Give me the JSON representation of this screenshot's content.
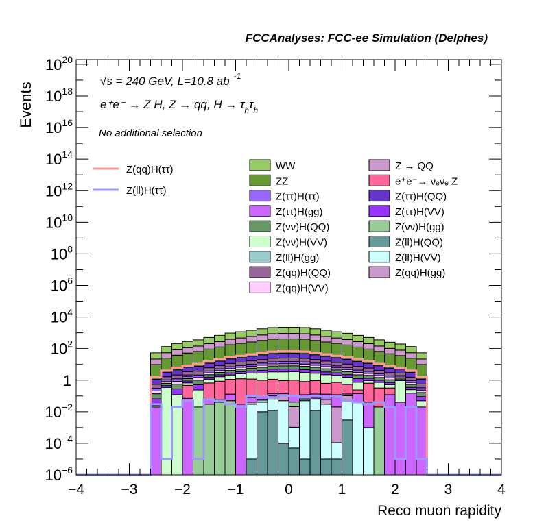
{
  "chart_data": {
    "type": "bar",
    "subtype": "stacked-histogram",
    "title": "FCCAnalyses: FCC-ee Simulation (Delphes)",
    "xlabel": "Reco muon rapidity",
    "ylabel": "Events",
    "xlim": [
      -4,
      4
    ],
    "ylim_log10": [
      -6,
      20.3
    ],
    "yscale": "log",
    "grid": false,
    "legend_placement": "top",
    "annotations": {
      "energy_lumi": "√s = 240 GeV, L=10.8 ab",
      "lumi_exp": "-1",
      "process": "e⁺e⁻ → Z H, Z → qq, H → τ",
      "process_sub1": "h",
      "process_tau2": "τ",
      "process_sub2": "h",
      "selection": "No additional selection"
    },
    "x_ticks": [
      "−4",
      "−3",
      "−2",
      "−1",
      "0",
      "1",
      "2",
      "3",
      "4"
    ],
    "x_tick_values": [
      -4,
      -3,
      -2,
      -1,
      0,
      1,
      2,
      3,
      4
    ],
    "y_ticks": [
      {
        "exp": -6,
        "base": "10",
        "sup": "−6"
      },
      {
        "exp": -4,
        "base": "10",
        "sup": "−4"
      },
      {
        "exp": -2,
        "base": "10",
        "sup": "−2"
      },
      {
        "exp": 0,
        "base": "1",
        "sup": ""
      },
      {
        "exp": 2,
        "base": "10",
        "sup": "2"
      },
      {
        "exp": 4,
        "base": "10",
        "sup": "4"
      },
      {
        "exp": 6,
        "base": "10",
        "sup": "6"
      },
      {
        "exp": 8,
        "base": "10",
        "sup": "8"
      },
      {
        "exp": 10,
        "base": "10",
        "sup": "10"
      },
      {
        "exp": 12,
        "base": "10",
        "sup": "12"
      },
      {
        "exp": 14,
        "base": "10",
        "sup": "14"
      },
      {
        "exp": 16,
        "base": "10",
        "sup": "16"
      },
      {
        "exp": 18,
        "base": "10",
        "sup": "18"
      },
      {
        "exp": 20,
        "base": "10",
        "sup": "20"
      }
    ],
    "bin_edges_range": [
      -2.6,
      2.6
    ],
    "bin_width": 0.2,
    "n_bins": 26,
    "shape": [
      0.018,
      0.045,
      0.07,
      0.095,
      0.12,
      0.17,
      0.23,
      0.32,
      0.39,
      0.48,
      0.6,
      0.72,
      0.75,
      0.75,
      0.72,
      0.6,
      0.48,
      0.39,
      0.31,
      0.23,
      0.17,
      0.12,
      0.085,
      0.065,
      0.045,
      0.018
    ],
    "stack_bottom_to_top": [
      {
        "name": "Z(ll)H(QQ)",
        "color": "#669999",
        "center_value": 0.03,
        "sparse": [
          0,
          0,
          0,
          0,
          0,
          0,
          0,
          0,
          0,
          1e-05,
          0.01,
          0.012,
          0.0001,
          5e-05,
          1e-05,
          0.012,
          1e-05,
          1e-05,
          0.003,
          0,
          0,
          0,
          0,
          0,
          0,
          0
        ]
      },
      {
        "name": "Z(ll)H(VV)",
        "color": "#ccffff",
        "center_value": 0.03,
        "sparse": [
          0,
          0,
          0,
          0,
          0,
          0,
          0,
          0,
          0,
          0.03,
          0.03,
          0.05,
          0.05,
          0.001,
          0.05,
          0.05,
          0.03,
          0.0001,
          0.05,
          0.04,
          0.001,
          0,
          0,
          0,
          0,
          0
        ]
      },
      {
        "name": "Z(ll)H(gg)",
        "color": "#99cccc",
        "center_value": 0.01,
        "sparse": [
          0,
          0,
          0,
          0,
          0,
          0,
          0,
          0,
          0,
          0,
          0.015,
          0,
          0,
          0,
          0,
          0,
          0,
          0,
          0,
          0,
          0,
          0,
          0,
          0,
          0,
          0
        ]
      },
      {
        "name": "Z(qq)H(gg)",
        "color": "#cc99cc",
        "center_value": 0.05,
        "sparse": [
          0,
          0,
          0,
          0,
          0,
          0,
          0,
          0,
          0,
          0.01,
          0,
          0.02,
          0.05,
          0.02,
          0.01,
          0.01,
          0.03,
          0.02,
          0.05,
          0,
          0,
          0,
          0,
          0,
          0,
          0
        ]
      },
      {
        "name": "Z(νν)H(gg)",
        "color": "#99cc99",
        "center_value": 0.05,
        "sparse": [
          0,
          0,
          0,
          0,
          0.02,
          0.03,
          0.04,
          0.05,
          0,
          0,
          0,
          0.02,
          0.01,
          0.02,
          0.01,
          0,
          0,
          0,
          0.01,
          0,
          0,
          0.02,
          0,
          0,
          0,
          0
        ]
      },
      {
        "name": "Z(ττ)H(gg)",
        "color": "#cc66ff",
        "center_value": 0.13,
        "sparse": [
          0.02,
          0,
          0,
          0.07,
          0,
          0.03,
          0.02,
          0.08,
          0.03,
          0.04,
          0.03,
          0.04,
          0.03,
          0.06,
          0.05,
          0.06,
          0.07,
          0.1,
          0.02,
          0.1,
          0.04,
          0,
          0.12,
          0.04,
          0.15,
          0.02
        ]
      },
      {
        "name": "e⁺e⁻→ νₑνₑ Z",
        "color": "#ff6699",
        "center_value": 0.6,
        "sparse": [
          0,
          0,
          0,
          0.4,
          0,
          0.6,
          0.8,
          1.0,
          1.2,
          1.1,
          0.9,
          1.0,
          0.8,
          0.9,
          0.7,
          0.8,
          0.5,
          0.6,
          0.4,
          0.1,
          0.6,
          0.3,
          0.2,
          0,
          0,
          0
        ]
      },
      {
        "name": "Z(νν)H(VV)",
        "color": "#ccffcc",
        "center_value": 2.4,
        "sparse": [
          0.004,
          0.35,
          0.12,
          0.2,
          0.22,
          0.5,
          0.8,
          1.0,
          1.3,
          1.6,
          1.8,
          2.2,
          2.4,
          2.4,
          2.2,
          1.8,
          1.6,
          1.3,
          1.0,
          0.5,
          0.3,
          0.4,
          0.2,
          0.9,
          0.1,
          0.03
        ]
      },
      {
        "name": "Z(ττ)H(VV)",
        "color": "#9933ff",
        "center_value": 1.7
      },
      {
        "name": "Z(νν)H(QQ)",
        "color": "#669966",
        "center_value": 3.0
      },
      {
        "name": "Z(qq)H(VV)",
        "color": "#ffccff",
        "center_value": 3.0
      },
      {
        "name": "Z(ττ)H(ττ)",
        "color": "#9966ff",
        "center_value": 4.0
      },
      {
        "name": "Z(qq)H(QQ)",
        "color": "#996699",
        "center_value": 10
      },
      {
        "name": "Z(ττ)H(QQ)",
        "color": "#6633cc",
        "center_value": 25
      },
      {
        "name": "ZZ",
        "color": "#669933",
        "center_value": 360
      },
      {
        "name": "Z → QQ",
        "color": "#cc99cc",
        "center_value": 500
      },
      {
        "name": "WW",
        "color": "#99cc66",
        "center_value": 1330
      }
    ],
    "lines": [
      {
        "name": "Z(qq)H(ττ)",
        "color": "#ff9999",
        "center_value": 67
      },
      {
        "name": "Z(ll)H(ττ)",
        "color": "#9999ff",
        "values": [
          0.03,
          1e-05,
          0.02,
          0.05,
          1e-05,
          0.06,
          0.05,
          0.03,
          0.02,
          0.1,
          0.09,
          0.08,
          0.1,
          0.1,
          0.08,
          0.1,
          0.09,
          0.09,
          0.05,
          0.04,
          0.03,
          0.04,
          0.02,
          1e-05,
          0.02,
          1e-05
        ]
      }
    ],
    "legend": {
      "lines": [
        {
          "label": "Z(qq)H(ττ)",
          "color": "#ff9999"
        },
        {
          "label": "Z(ll)H(ττ)",
          "color": "#9999ff"
        }
      ],
      "boxes": [
        {
          "label": "WW",
          "color": "#99cc66"
        },
        {
          "label": "Z → QQ",
          "color": "#cc99cc"
        },
        {
          "label": "ZZ",
          "color": "#669933"
        },
        {
          "label": "e⁺e⁻→ νₑνₑ Z",
          "color": "#ff6699"
        },
        {
          "label": "Z(ττ)H(ττ)",
          "color": "#9966ff"
        },
        {
          "label": "Z(ττ)H(QQ)",
          "color": "#6633cc"
        },
        {
          "label": "Z(ττ)H(gg)",
          "color": "#cc66ff"
        },
        {
          "label": "Z(ττ)H(VV)",
          "color": "#9933ff"
        },
        {
          "label": "Z(νν)H(QQ)",
          "color": "#669966"
        },
        {
          "label": "Z(νν)H(gg)",
          "color": "#99cc99"
        },
        {
          "label": "Z(νν)H(VV)",
          "color": "#ccffcc"
        },
        {
          "label": "Z(ll)H(QQ)",
          "color": "#669999"
        },
        {
          "label": "Z(ll)H(gg)",
          "color": "#99cccc"
        },
        {
          "label": "Z(ll)H(VV)",
          "color": "#ccffff"
        },
        {
          "label": "Z(qq)H(QQ)",
          "color": "#996699"
        },
        {
          "label": "Z(qq)H(gg)",
          "color": "#cc99cc"
        },
        {
          "label": "Z(qq)H(VV)",
          "color": "#ffccff"
        }
      ]
    }
  }
}
